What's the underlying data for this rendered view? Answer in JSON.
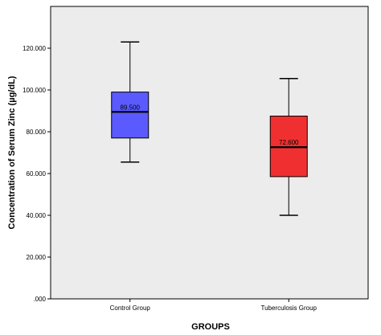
{
  "chart_data": {
    "type": "boxplot",
    "title": "",
    "xlabel": "GROUPS",
    "ylabel": "Concentration of Serum Zinc (µg/dL)",
    "ylim": [
      0,
      130
    ],
    "yticks": [
      0,
      20,
      40,
      60,
      80,
      100,
      120
    ],
    "ytick_labels": [
      ".000",
      "20.000",
      "40.000",
      "60.000",
      "80.000",
      "100.000",
      "120.000"
    ],
    "grid": false,
    "categories": [
      "Control Group",
      "Tuberculosis Group"
    ],
    "boxes": [
      {
        "category": "Control Group",
        "min": 65.5,
        "q1": 77,
        "median": 89.5,
        "q3": 99,
        "max": 123,
        "median_label": "89.500",
        "color": "#5a5aff"
      },
      {
        "category": "Tuberculosis Group",
        "min": 40,
        "q1": 58.5,
        "median": 72.6,
        "q3": 87.5,
        "max": 105.5,
        "median_label": "72.600",
        "color": "#f03030"
      }
    ]
  }
}
